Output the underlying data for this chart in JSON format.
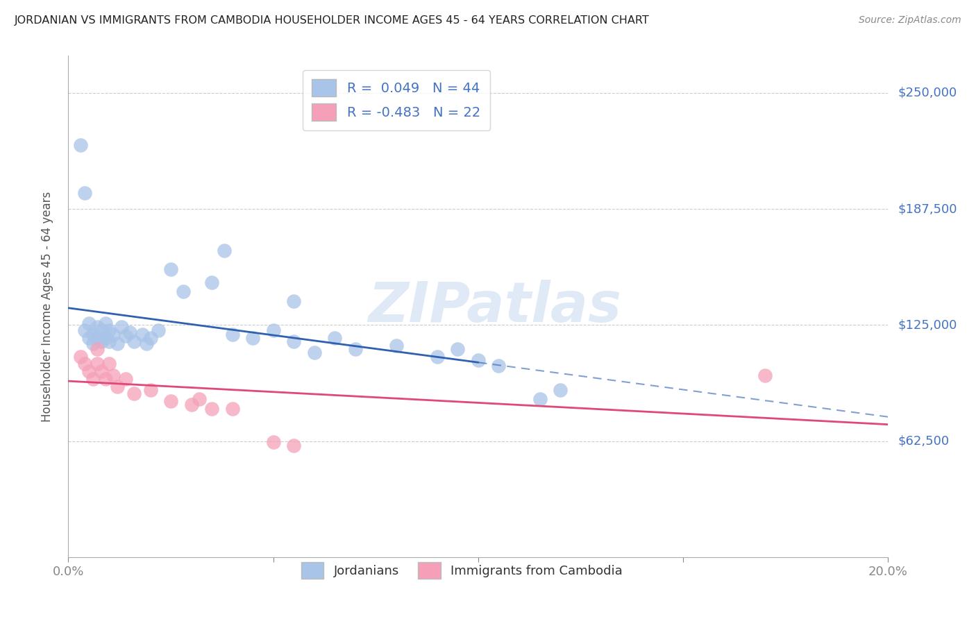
{
  "title": "JORDANIAN VS IMMIGRANTS FROM CAMBODIA HOUSEHOLDER INCOME AGES 45 - 64 YEARS CORRELATION CHART",
  "source": "Source: ZipAtlas.com",
  "ylabel": "Householder Income Ages 45 - 64 years",
  "xlim": [
    0.0,
    0.2
  ],
  "ylim": [
    0,
    270000
  ],
  "x_ticks": [
    0.0,
    0.05,
    0.1,
    0.15,
    0.2
  ],
  "x_tick_labels": [
    "0.0%",
    "",
    "",
    "",
    "20.0%"
  ],
  "y_tick_labels": [
    "$62,500",
    "$125,000",
    "$187,500",
    "$250,000"
  ],
  "y_ticks": [
    62500,
    125000,
    187500,
    250000
  ],
  "color_jordan": "#a8c4e8",
  "color_cambodia": "#f5a0b8",
  "line_color_jordan": "#3060b0",
  "line_color_cambodia": "#e04878",
  "watermark": "ZIPatlas",
  "jordan_x": [
    0.004,
    0.005,
    0.005,
    0.006,
    0.006,
    0.007,
    0.007,
    0.008,
    0.008,
    0.009,
    0.009,
    0.01,
    0.01,
    0.011,
    0.012,
    0.013,
    0.014,
    0.015,
    0.016,
    0.018,
    0.019,
    0.02,
    0.022,
    0.025,
    0.028,
    0.035,
    0.04,
    0.045,
    0.05,
    0.055,
    0.06,
    0.065,
    0.07,
    0.08,
    0.09,
    0.095,
    0.1,
    0.105,
    0.115,
    0.12,
    0.003,
    0.004,
    0.038,
    0.055
  ],
  "jordan_y": [
    122000,
    118000,
    126000,
    120000,
    115000,
    124000,
    118000,
    122000,
    116000,
    126000,
    118000,
    122000,
    116000,
    120000,
    115000,
    124000,
    119000,
    121000,
    116000,
    120000,
    115000,
    118000,
    122000,
    155000,
    143000,
    148000,
    120000,
    118000,
    122000,
    116000,
    110000,
    118000,
    112000,
    114000,
    108000,
    112000,
    106000,
    103000,
    85000,
    90000,
    222000,
    196000,
    165000,
    138000
  ],
  "cambodia_x": [
    0.003,
    0.004,
    0.005,
    0.006,
    0.007,
    0.007,
    0.008,
    0.009,
    0.01,
    0.011,
    0.012,
    0.014,
    0.016,
    0.02,
    0.025,
    0.03,
    0.032,
    0.035,
    0.04,
    0.05,
    0.055,
    0.17
  ],
  "cambodia_y": [
    108000,
    104000,
    100000,
    96000,
    112000,
    104000,
    100000,
    96000,
    104000,
    98000,
    92000,
    96000,
    88000,
    90000,
    84000,
    82000,
    85000,
    80000,
    80000,
    62000,
    60000,
    98000
  ]
}
